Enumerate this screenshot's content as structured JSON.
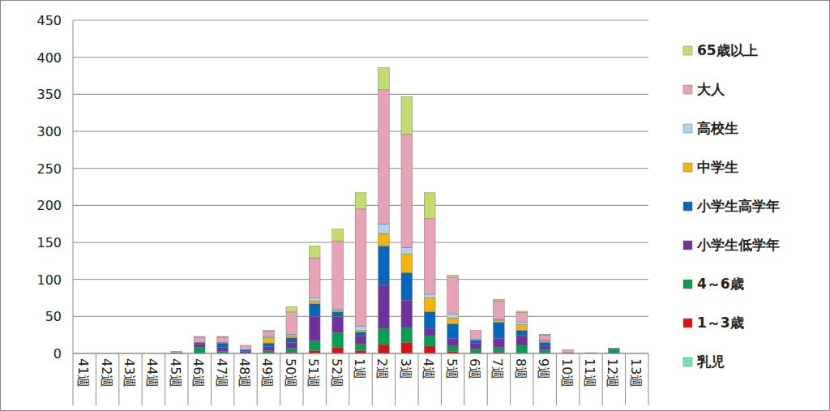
{
  "chart_data": {
    "type": "bar",
    "stacked": true,
    "grid": true,
    "legend": "right",
    "categories": [
      "41週",
      "42週",
      "43週",
      "44週",
      "45週",
      "46週",
      "47週",
      "48週",
      "49週",
      "50週",
      "51週",
      "52週",
      "1週",
      "2週",
      "3週",
      "4週",
      "5週",
      "6週",
      "7週",
      "8週",
      "9週",
      "10週",
      "11週",
      "12週",
      "13週"
    ],
    "ylim": [
      0,
      450
    ],
    "yticks": [
      0,
      50,
      100,
      150,
      200,
      250,
      300,
      350,
      400,
      450
    ],
    "series": [
      {
        "name": "乳児",
        "color": "#66e8b8",
        "values": [
          0,
          0,
          0,
          0,
          0,
          0,
          0,
          0,
          0,
          0,
          0,
          0,
          0,
          0,
          0,
          0,
          0,
          0,
          0,
          0,
          0,
          0,
          0,
          0,
          0
        ]
      },
      {
        "name": "1～3歳",
        "color": "#e01010",
        "values": [
          0,
          0,
          0,
          0,
          0,
          0,
          1,
          0,
          1,
          2,
          4,
          8,
          4,
          12,
          15,
          10,
          3,
          1,
          2,
          1,
          1,
          0,
          0,
          0,
          0
        ]
      },
      {
        "name": "4～6歳",
        "color": "#00a050",
        "values": [
          0,
          0,
          0,
          0,
          0,
          8,
          2,
          1,
          3,
          5,
          13,
          20,
          9,
          22,
          20,
          14,
          7,
          5,
          6,
          10,
          4,
          0,
          0,
          6,
          0
        ]
      },
      {
        "name": "小学生低学年",
        "color": "#7030a0",
        "values": [
          0,
          0,
          0,
          0,
          1,
          5,
          5,
          2,
          5,
          8,
          33,
          22,
          11,
          58,
          37,
          10,
          10,
          8,
          12,
          13,
          5,
          1,
          0,
          1,
          0
        ]
      },
      {
        "name": "小学生高学年",
        "color": "#0068c0",
        "values": [
          0,
          0,
          0,
          0,
          0,
          2,
          6,
          2,
          5,
          6,
          17,
          6,
          5,
          53,
          37,
          22,
          20,
          4,
          22,
          7,
          5,
          0,
          0,
          0,
          0
        ]
      },
      {
        "name": "中学生",
        "color": "#f5b400",
        "values": [
          0,
          0,
          0,
          0,
          0,
          0,
          1,
          0,
          7,
          3,
          4,
          2,
          2,
          17,
          25,
          19,
          8,
          0,
          3,
          8,
          2,
          0,
          0,
          0,
          0
        ]
      },
      {
        "name": "高校生",
        "color": "#a6d8f2",
        "values": [
          0,
          0,
          0,
          0,
          0,
          0,
          0,
          0,
          2,
          2,
          4,
          2,
          6,
          13,
          9,
          5,
          5,
          1,
          1,
          3,
          1,
          0,
          0,
          0,
          0
        ]
      },
      {
        "name": "大人",
        "color": "#e8a2b6",
        "values": [
          0,
          0,
          0,
          0,
          2,
          7,
          7,
          6,
          7,
          30,
          54,
          92,
          158,
          181,
          153,
          102,
          50,
          12,
          25,
          13,
          7,
          4,
          1,
          0,
          0
        ]
      },
      {
        "name": "65歳以上",
        "color": "#c4dc6c",
        "values": [
          0,
          0,
          0,
          0,
          0,
          1,
          1,
          0,
          1,
          7,
          16,
          16,
          22,
          30,
          51,
          35,
          3,
          0,
          2,
          2,
          1,
          0,
          0,
          0,
          0
        ]
      }
    ]
  }
}
